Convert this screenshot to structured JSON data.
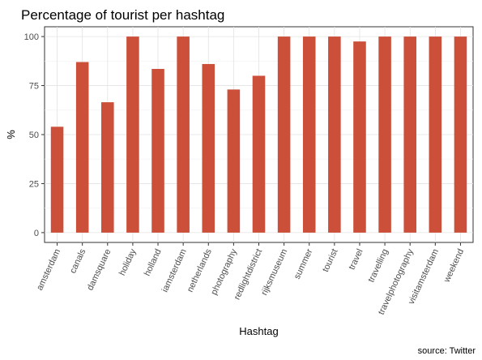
{
  "chart_data": {
    "type": "bar",
    "title": "Percentage of tourist per hashtag",
    "xlabel": "Hashtag",
    "ylabel": "%",
    "caption": "source: Twitter",
    "categories": [
      "amsterdam",
      "canals",
      "damsquare",
      "holiday",
      "holland",
      "iamsterdam",
      "netherlands",
      "photography",
      "redlightdistrict",
      "rijksmuseum",
      "summer",
      "tourist",
      "travel",
      "travelling",
      "travelphotography",
      "visitamsterdam",
      "weekend"
    ],
    "values": [
      54,
      87,
      66.5,
      100,
      83.5,
      100,
      86,
      73,
      80,
      100,
      100,
      100,
      97.5,
      100,
      100,
      100,
      100
    ],
    "yticks": [
      "0",
      "25",
      "50",
      "75",
      "100"
    ],
    "ylim": [
      -5,
      105
    ],
    "grid": true,
    "legend": "none",
    "bar_color": "#cc5039"
  }
}
